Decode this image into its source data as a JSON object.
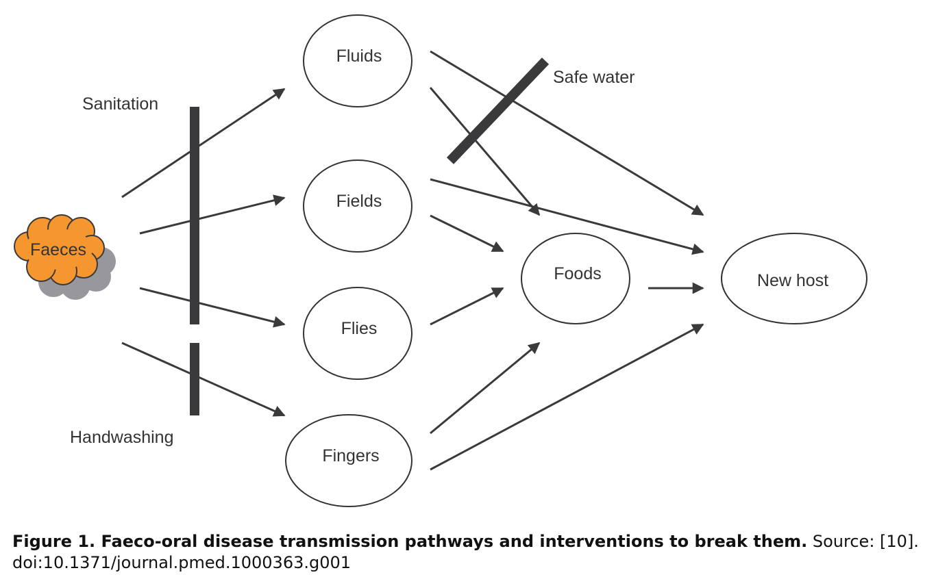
{
  "nodes": {
    "faeces": "Faeces",
    "fluids": "Fluids",
    "fields": "Fields",
    "flies": "Flies",
    "fingers": "Fingers",
    "foods": "Foods",
    "new_host": "New host"
  },
  "barriers": {
    "sanitation": "Sanitation",
    "handwashing": "Handwashing",
    "safe_water": "Safe water"
  },
  "caption": {
    "title": "Figure 1. Faeco-oral disease transmission pathways and interventions to break them.",
    "source": "Source: [10].",
    "doi": "doi:10.1371/journal.pmed.1000363.g001"
  },
  "colors": {
    "arrow": "#3a3a3c",
    "barrier": "#3a3a3c",
    "cloud_fill": "#f5962f",
    "cloud_shadow": "#98989c",
    "node_stroke": "#333333"
  }
}
